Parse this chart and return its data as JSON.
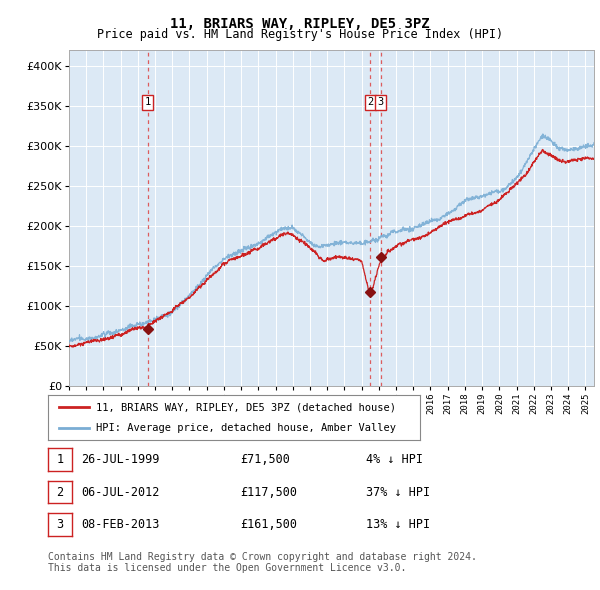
{
  "title": "11, BRIARS WAY, RIPLEY, DE5 3PZ",
  "subtitle": "Price paid vs. HM Land Registry's House Price Index (HPI)",
  "ytick_values": [
    0,
    50000,
    100000,
    150000,
    200000,
    250000,
    300000,
    350000,
    400000
  ],
  "ylim": [
    0,
    420000
  ],
  "plot_bg_color": "#dce9f5",
  "hpi_color": "#7aadd4",
  "price_color": "#cc2222",
  "vline_color": "#dd4444",
  "marker_color": "#881111",
  "transaction_dates": [
    1999.57,
    2012.51,
    2013.1
  ],
  "transaction_prices": [
    71500,
    117500,
    161500
  ],
  "transaction_labels": [
    "1",
    "2",
    "3"
  ],
  "legend_label_red": "11, BRIARS WAY, RIPLEY, DE5 3PZ (detached house)",
  "legend_label_blue": "HPI: Average price, detached house, Amber Valley",
  "table_rows": [
    [
      "1",
      "26-JUL-1999",
      "£71,500",
      "4% ↓ HPI"
    ],
    [
      "2",
      "06-JUL-2012",
      "£117,500",
      "37% ↓ HPI"
    ],
    [
      "3",
      "08-FEB-2013",
      "£161,500",
      "13% ↓ HPI"
    ]
  ],
  "footnote1": "Contains HM Land Registry data © Crown copyright and database right 2024.",
  "footnote2": "This data is licensed under the Open Government Licence v3.0.",
  "xstart": 1995.0,
  "xend": 2025.5,
  "hpi_anchors_x": [
    1995.0,
    1995.5,
    1996.0,
    1996.5,
    1997.0,
    1997.5,
    1998.0,
    1998.5,
    1999.0,
    1999.5,
    2000.0,
    2000.5,
    2001.0,
    2001.5,
    2002.0,
    2002.5,
    2003.0,
    2003.5,
    2004.0,
    2004.5,
    2005.0,
    2005.5,
    2006.0,
    2006.5,
    2007.0,
    2007.5,
    2008.0,
    2008.5,
    2009.0,
    2009.5,
    2010.0,
    2010.5,
    2011.0,
    2011.5,
    2012.0,
    2012.5,
    2013.0,
    2013.5,
    2014.0,
    2014.5,
    2015.0,
    2015.5,
    2016.0,
    2016.5,
    2017.0,
    2017.5,
    2018.0,
    2018.5,
    2019.0,
    2019.5,
    2020.0,
    2020.5,
    2021.0,
    2021.5,
    2022.0,
    2022.5,
    2023.0,
    2023.5,
    2024.0,
    2024.5,
    2025.0,
    2025.5
  ],
  "hpi_anchors_y": [
    54000,
    55000,
    57000,
    59000,
    62000,
    65000,
    68000,
    72000,
    75000,
    78000,
    83000,
    89000,
    96000,
    105000,
    115000,
    126000,
    138000,
    148000,
    158000,
    165000,
    170000,
    174000,
    179000,
    185000,
    192000,
    198000,
    197000,
    190000,
    180000,
    174000,
    176000,
    179000,
    178000,
    177000,
    176000,
    178000,
    182000,
    186000,
    190000,
    193000,
    196000,
    200000,
    204000,
    210000,
    217000,
    224000,
    230000,
    236000,
    241000,
    246000,
    250000,
    256000,
    265000,
    278000,
    298000,
    315000,
    310000,
    300000,
    298000,
    300000,
    302000,
    305000
  ],
  "price_anchors_x": [
    1995.0,
    1995.5,
    1996.0,
    1996.5,
    1997.0,
    1997.5,
    1998.0,
    1998.5,
    1999.0,
    1999.5,
    2000.0,
    2000.5,
    2001.0,
    2001.5,
    2002.0,
    2002.5,
    2003.0,
    2003.5,
    2004.0,
    2004.5,
    2005.0,
    2005.5,
    2006.0,
    2006.5,
    2007.0,
    2007.5,
    2008.0,
    2008.5,
    2009.0,
    2009.3,
    2009.5,
    2009.8,
    2010.0,
    2010.5,
    2011.0,
    2011.5,
    2012.0,
    2012.51,
    2013.1,
    2013.5,
    2014.0,
    2014.5,
    2015.0,
    2015.5,
    2016.0,
    2016.5,
    2017.0,
    2017.5,
    2018.0,
    2018.5,
    2019.0,
    2019.5,
    2020.0,
    2020.5,
    2021.0,
    2021.5,
    2022.0,
    2022.5,
    2023.0,
    2023.5,
    2024.0,
    2024.5,
    2025.0,
    2025.5
  ],
  "price_anchors_y": [
    52000,
    53000,
    55000,
    57000,
    60000,
    63000,
    66000,
    70000,
    72000,
    71500,
    80000,
    86000,
    93000,
    101000,
    110000,
    121000,
    132000,
    142000,
    152000,
    159000,
    163000,
    167000,
    172000,
    178000,
    185000,
    191000,
    190000,
    183000,
    174000,
    168000,
    163000,
    158000,
    160000,
    163000,
    162000,
    162000,
    160000,
    117500,
    161500,
    173000,
    179000,
    182000,
    185000,
    188000,
    193000,
    198000,
    204000,
    209000,
    214000,
    218000,
    222000,
    227000,
    232000,
    242000,
    255000,
    265000,
    278000,
    292000,
    285000,
    278000,
    276000,
    278000,
    280000,
    282000
  ]
}
